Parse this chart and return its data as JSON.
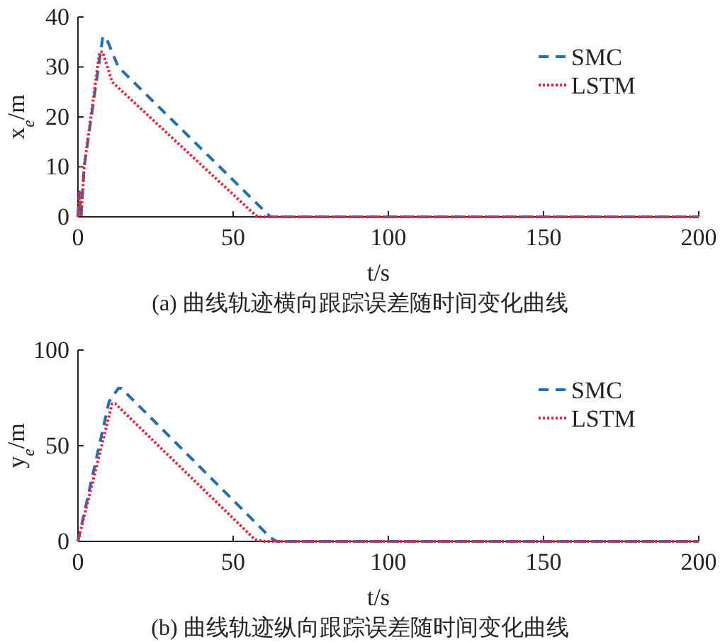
{
  "chart_data": [
    {
      "type": "line",
      "title": "(a) 曲线轨迹横向跟踪误差随时间变化曲线",
      "xlabel": "t/s",
      "ylabel": "x$_{e}$/m",
      "xlim": [
        0,
        200
      ],
      "xticks": [
        0,
        50,
        100,
        150,
        200
      ],
      "ylim": [
        0,
        40
      ],
      "yticks": [
        0,
        10,
        20,
        30,
        40
      ],
      "grid": false,
      "legend": "top right",
      "series": [
        {
          "name": "SMC",
          "color": "#1f6fb4",
          "line_style": "dashed",
          "x": [
            0,
            0.5,
            1,
            2,
            8,
            9,
            13,
            62,
            200
          ],
          "values": [
            0,
            5,
            0,
            10,
            36,
            36,
            30,
            0,
            0
          ]
        },
        {
          "name": "LSTM",
          "color": "#f0203a",
          "line_style": "dotted",
          "x": [
            0,
            0.5,
            1,
            2,
            7,
            8,
            11,
            56,
            58,
            200
          ],
          "values": [
            0,
            5,
            0,
            10,
            33,
            33,
            27,
            1,
            0,
            0
          ]
        }
      ]
    },
    {
      "type": "line",
      "title": "(b) 曲线轨迹纵向跟踪误差随时间变化曲线",
      "xlabel": "t/s",
      "ylabel": "y$_{e}$/m",
      "xlim": [
        0,
        200
      ],
      "xticks": [
        0,
        50,
        100,
        150,
        200
      ],
      "ylim": [
        0,
        100
      ],
      "yticks": [
        0,
        50,
        100
      ],
      "grid": false,
      "legend": "top right",
      "series": [
        {
          "name": "SMC",
          "color": "#1f6fb4",
          "line_style": "dashed",
          "x": [
            0,
            10,
            13,
            14,
            62,
            64,
            200
          ],
          "values": [
            0,
            73,
            80,
            80,
            2,
            0,
            0
          ]
        },
        {
          "name": "LSTM",
          "color": "#f0203a",
          "line_style": "dotted",
          "x": [
            0,
            11,
            12,
            57,
            60,
            200
          ],
          "values": [
            0,
            72,
            72,
            1,
            0,
            0
          ]
        }
      ]
    }
  ]
}
